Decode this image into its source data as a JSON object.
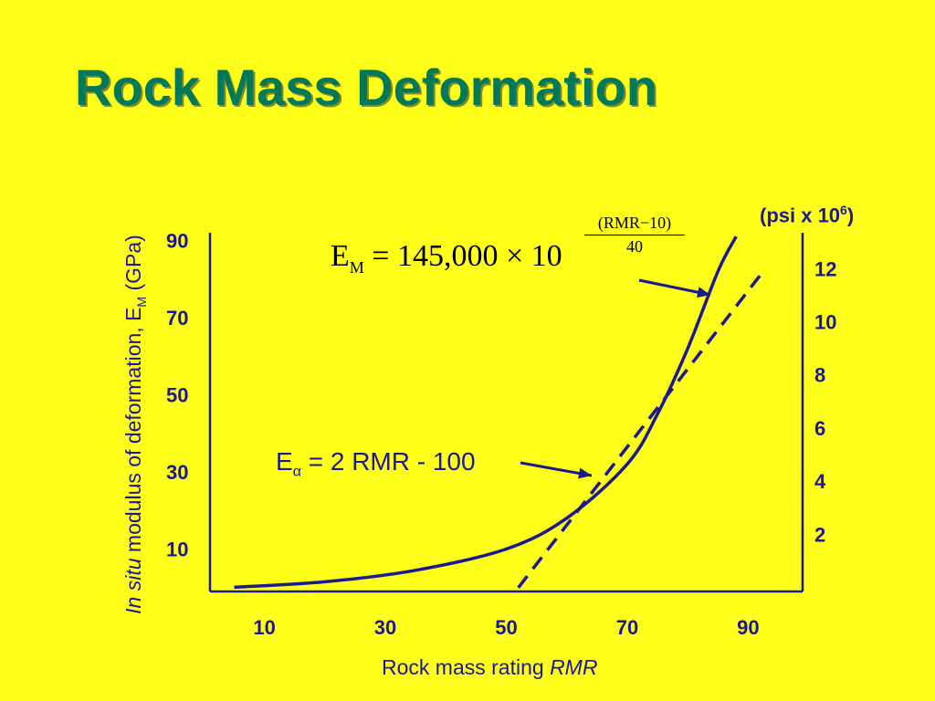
{
  "page": {
    "title": "Rock Mass Deformation"
  },
  "chart_data": {
    "type": "line",
    "xlabel_prefix": "Rock mass rating ",
    "xlabel_var": "RMR",
    "ylabel_italic": "In situ",
    "ylabel_main": " modulus of deformation, E",
    "ylabel_sub": "M",
    "ylabel_unit": " (GPa)",
    "y2label_text": "(psi x 10",
    "y2label_sup": "6",
    "y2label_close": ")",
    "xticks": [
      10,
      30,
      50,
      70,
      90
    ],
    "xtick_labels": [
      "10",
      "30",
      "50",
      "70",
      "90"
    ],
    "yticks": [
      10,
      30,
      50,
      70,
      90
    ],
    "ytick_labels": [
      "10",
      "30",
      "50",
      "70",
      "90"
    ],
    "y2ticks": [
      2,
      4,
      6,
      8,
      10,
      12
    ],
    "y2tick_labels": [
      "2",
      "4",
      "6",
      "8",
      "10",
      "12"
    ],
    "xlim": [
      1,
      99
    ],
    "ylim": [
      -1,
      92
    ],
    "y2lim": [
      -0.15,
      13.35
    ],
    "series": [
      {
        "style": "solid",
        "x": [
          5,
          20,
          35,
          50,
          60,
          70,
          75,
          80,
          85,
          88
        ],
        "y": [
          0.1,
          1.5,
          4.5,
          10,
          18,
          32,
          45,
          62,
          82,
          91
        ]
      },
      {
        "style": "dashed",
        "x": [
          52,
          92
        ],
        "y": [
          0,
          81
        ]
      }
    ],
    "annotations": {
      "eq1_lhs": "E",
      "eq1_lhs_sub": "M",
      "eq1_rhs": " = 145,000 × 10",
      "eq1_exp_num": "(RMR−10)",
      "eq1_exp_den": "40",
      "eq2_lhs": "E",
      "eq2_lhs_sub": "α",
      "eq2_rhs": " = 2 RMR - 100"
    },
    "colors": {
      "line": "#1a1a8c",
      "title": "#00785a",
      "background": "#ffff1a"
    },
    "grid": false
  }
}
